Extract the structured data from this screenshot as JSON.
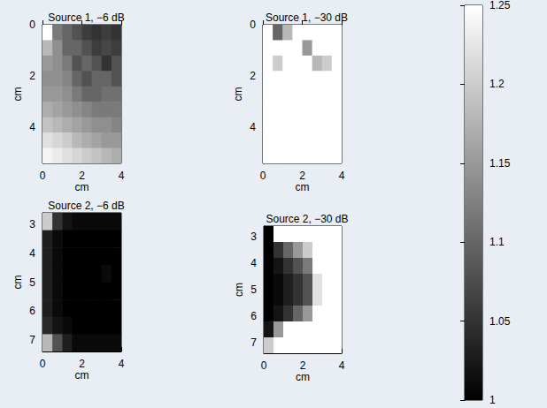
{
  "chart_data": {
    "type": "heatmap",
    "colors": [
      "#000000",
      "#ffffff"
    ],
    "colorbar": {
      "range": [
        1,
        1.25
      ],
      "ticks": [
        1,
        1.05,
        1.1,
        1.15,
        1.2,
        1.25
      ]
    },
    "panels": [
      {
        "title": "Source 1, −6 dB",
        "x_label": "cm",
        "y_label": "cm",
        "xlim": [
          0,
          4
        ],
        "ylim": [
          0,
          5.4
        ],
        "xticks": [
          0,
          2,
          4
        ],
        "yticks": [
          0,
          2,
          4
        ],
        "x": [
          0.25,
          0.75,
          1.25,
          1.75,
          2.25,
          2.75,
          3.25,
          3.75
        ],
        "y": [
          0.3,
          0.9,
          1.5,
          2.1,
          2.7,
          3.3,
          3.9,
          4.5,
          5.1
        ],
        "cells": [
          [
            1.25,
            1.12,
            1.1,
            1.08,
            1.06,
            1.05,
            1.06,
            1.05
          ],
          [
            1.18,
            1.14,
            1.1,
            1.1,
            1.08,
            1.06,
            1.07,
            1.06
          ],
          [
            1.15,
            1.14,
            1.12,
            1.08,
            1.1,
            1.08,
            1.05,
            1.08
          ],
          [
            1.14,
            1.14,
            1.13,
            1.1,
            1.08,
            1.1,
            1.1,
            1.08
          ],
          [
            1.15,
            1.15,
            1.14,
            1.12,
            1.1,
            1.1,
            1.11,
            1.11
          ],
          [
            1.17,
            1.16,
            1.15,
            1.14,
            1.13,
            1.12,
            1.12,
            1.12
          ],
          [
            1.19,
            1.18,
            1.17,
            1.16,
            1.15,
            1.14,
            1.14,
            1.13
          ],
          [
            1.22,
            1.21,
            1.2,
            1.18,
            1.17,
            1.16,
            1.15,
            1.15
          ],
          [
            1.24,
            1.23,
            1.22,
            1.21,
            1.2,
            1.19,
            1.18,
            1.17
          ]
        ]
      },
      {
        "title": "Source 1, −30 dB",
        "x_label": "cm",
        "y_label": "cm",
        "xlim": [
          0,
          4
        ],
        "ylim": [
          0,
          5.4
        ],
        "xticks": [
          0,
          2,
          4
        ],
        "yticks": [
          0,
          2,
          4
        ],
        "x": [
          0.25,
          0.75,
          1.25,
          1.75,
          2.25,
          2.75,
          3.25,
          3.75
        ],
        "y": [
          0.3,
          0.9,
          1.5,
          2.1,
          2.7,
          3.3,
          3.9,
          4.5,
          5.1
        ],
        "cells": [
          [
            1.25,
            1.1,
            1.18,
            1.25,
            1.25,
            1.25,
            1.25,
            1.25
          ],
          [
            1.25,
            1.25,
            1.25,
            1.25,
            1.15,
            1.25,
            1.25,
            1.25
          ],
          [
            1.25,
            1.2,
            1.25,
            1.25,
            1.25,
            1.18,
            1.2,
            1.25
          ],
          [
            1.25,
            1.25,
            1.25,
            1.25,
            1.25,
            1.25,
            1.25,
            1.25
          ],
          [
            1.25,
            1.25,
            1.25,
            1.25,
            1.25,
            1.25,
            1.25,
            1.25
          ],
          [
            1.25,
            1.25,
            1.25,
            1.25,
            1.25,
            1.25,
            1.25,
            1.25
          ],
          [
            1.25,
            1.25,
            1.25,
            1.25,
            1.25,
            1.25,
            1.25,
            1.25
          ],
          [
            1.25,
            1.25,
            1.25,
            1.25,
            1.25,
            1.25,
            1.25,
            1.25
          ],
          [
            1.25,
            1.25,
            1.25,
            1.25,
            1.25,
            1.25,
            1.25,
            1.25
          ]
        ]
      },
      {
        "title": "Source 2, −6 dB",
        "x_label": "cm",
        "y_label": "cm",
        "xlim": [
          0,
          4
        ],
        "ylim": [
          2.6,
          7.4
        ],
        "xticks": [
          0,
          2,
          4
        ],
        "yticks": [
          3,
          4,
          5,
          6,
          7
        ],
        "x": [
          0.25,
          0.75,
          1.25,
          1.75,
          2.25,
          2.75,
          3.25,
          3.75
        ],
        "y": [
          2.9,
          3.5,
          4.1,
          4.7,
          5.3,
          5.9,
          6.5,
          7.1
        ],
        "cells": [
          [
            1.2,
            1.05,
            1.02,
            1.01,
            1.01,
            1.01,
            1.01,
            1.01
          ],
          [
            1.03,
            1.01,
            1,
            1,
            1,
            1,
            1,
            1
          ],
          [
            1.03,
            1.01,
            1,
            1,
            1,
            1,
            1,
            1
          ],
          [
            1.03,
            1.01,
            1,
            1,
            1,
            1,
            1.01,
            1
          ],
          [
            1.03,
            1.01,
            1,
            1,
            1,
            1,
            1,
            1
          ],
          [
            1.03,
            1.01,
            1,
            1,
            1,
            1,
            1,
            1
          ],
          [
            1.04,
            1.02,
            1.01,
            1,
            1,
            1,
            1,
            1
          ],
          [
            1.18,
            1.08,
            1.03,
            1.01,
            1.01,
            1.01,
            1.01,
            1.01
          ]
        ]
      },
      {
        "title": "Source 2, −30 dB",
        "x_label": "cm",
        "y_label": "cm",
        "xlim": [
          0,
          4
        ],
        "ylim": [
          2.6,
          7.4
        ],
        "xticks": [
          0,
          2,
          4
        ],
        "yticks": [
          3,
          4,
          5,
          6,
          7
        ],
        "x": [
          0.25,
          0.75,
          1.25,
          1.75,
          2.25,
          2.75,
          3.25,
          3.75
        ],
        "y": [
          2.9,
          3.5,
          4.1,
          4.7,
          5.3,
          5.9,
          6.5,
          7.1
        ],
        "cells": [
          [
            1,
            1.25,
            1.25,
            1.25,
            1.25,
            1.25,
            1.25,
            1.25
          ],
          [
            1,
            1.05,
            1.1,
            1.15,
            1.2,
            1.25,
            1.25,
            1.25
          ],
          [
            1,
            1.02,
            1.05,
            1.08,
            1.12,
            1.25,
            1.25,
            1.25
          ],
          [
            1,
            1.01,
            1.03,
            1.05,
            1.08,
            1.22,
            1.25,
            1.25
          ],
          [
            1,
            1.01,
            1.03,
            1.05,
            1.08,
            1.22,
            1.25,
            1.25
          ],
          [
            1,
            1.02,
            1.05,
            1.1,
            1.15,
            1.25,
            1.25,
            1.25
          ],
          [
            1.02,
            1.15,
            1.25,
            1.25,
            1.25,
            1.25,
            1.25,
            1.25
          ],
          [
            1.2,
            1.25,
            1.25,
            1.25,
            1.25,
            1.25,
            1.25,
            1.25
          ]
        ]
      }
    ]
  }
}
